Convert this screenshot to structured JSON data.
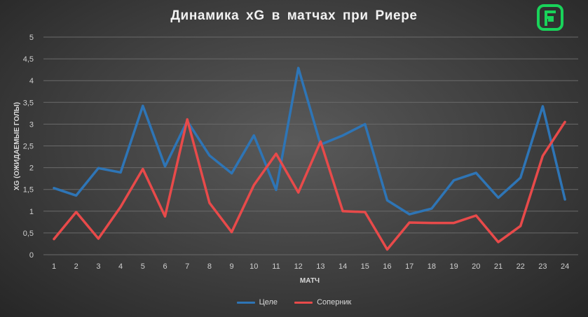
{
  "chart_data": {
    "type": "line",
    "title": "Динамика  xG в матчах  при Риере",
    "xlabel": "МАТЧ",
    "ylabel": "XG (ОЖИДАЕМЫЕ ГОЛЫ)",
    "categories": [
      "1",
      "2",
      "3",
      "4",
      "5",
      "6",
      "7",
      "8",
      "9",
      "10",
      "11",
      "12",
      "13",
      "14",
      "15",
      "16",
      "17",
      "18",
      "19",
      "20",
      "21",
      "22",
      "23",
      "24"
    ],
    "ylim": [
      0,
      5
    ],
    "yticks": [
      "0",
      "0,5",
      "1",
      "1,5",
      "2",
      "2,5",
      "3",
      "3,5",
      "4",
      "4,5",
      "5"
    ],
    "grid": true,
    "legend_position": "bottom",
    "series": [
      {
        "name": "Целе",
        "color": "#2e75b6",
        "values": [
          1.53,
          1.36,
          1.99,
          1.89,
          3.42,
          2.03,
          3.07,
          2.28,
          1.87,
          2.74,
          1.49,
          4.29,
          2.53,
          2.74,
          3.0,
          1.25,
          0.93,
          1.06,
          1.71,
          1.88,
          1.31,
          1.77,
          3.41,
          1.27
        ]
      },
      {
        "name": "Соперник",
        "color": "#e84a4a",
        "values": [
          0.36,
          0.98,
          0.37,
          1.1,
          1.97,
          0.88,
          3.11,
          1.19,
          0.52,
          1.6,
          2.32,
          1.43,
          2.6,
          1.0,
          0.98,
          0.12,
          0.74,
          0.73,
          0.73,
          0.9,
          0.29,
          0.66,
          2.27,
          3.05
        ]
      }
    ]
  },
  "logo": {
    "name": "brand-logo",
    "color": "#19d35a"
  }
}
